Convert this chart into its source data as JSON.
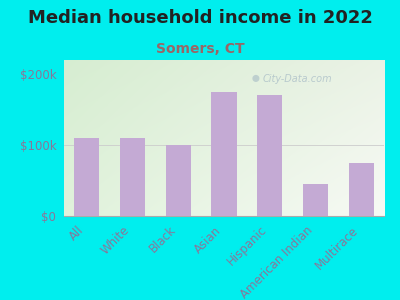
{
  "title": "Median household income in 2022",
  "subtitle": "Somers, CT",
  "categories": [
    "All",
    "White",
    "Black",
    "Asian",
    "Hispanic",
    "American Indian",
    "Multirace"
  ],
  "values": [
    110000,
    110000,
    100000,
    175000,
    170000,
    45000,
    75000
  ],
  "bar_color": "#c4aad4",
  "background_outer": "#00EEEE",
  "title_color": "#222222",
  "subtitle_color": "#996666",
  "tick_label_color": "#887799",
  "ylim": [
    0,
    220000
  ],
  "yticks": [
    0,
    100000,
    200000
  ],
  "ytick_labels": [
    "$0",
    "$100k",
    "$200k"
  ],
  "watermark": "City-Data.com",
  "title_fontsize": 13,
  "subtitle_fontsize": 10,
  "tick_fontsize": 8.5
}
